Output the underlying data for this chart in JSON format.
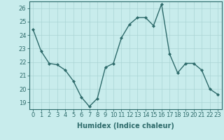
{
  "x": [
    0,
    1,
    2,
    3,
    4,
    5,
    6,
    7,
    8,
    9,
    10,
    11,
    12,
    13,
    14,
    15,
    16,
    17,
    18,
    19,
    20,
    21,
    22,
    23
  ],
  "y": [
    24.4,
    22.8,
    21.9,
    21.8,
    21.4,
    20.6,
    19.4,
    18.7,
    19.3,
    21.6,
    21.9,
    23.8,
    24.8,
    25.3,
    25.3,
    24.7,
    26.3,
    22.6,
    21.2,
    21.9,
    21.9,
    21.4,
    20.0,
    19.6
  ],
  "line_color": "#2e6b6b",
  "marker": "D",
  "marker_size": 2,
  "background_color": "#c8ecec",
  "grid_color": "#aad4d4",
  "xlabel": "Humidex (Indice chaleur)",
  "xlim": [
    -0.5,
    23.5
  ],
  "ylim": [
    18.5,
    26.5
  ],
  "yticks": [
    19,
    20,
    21,
    22,
    23,
    24,
    25,
    26
  ],
  "xticks": [
    0,
    1,
    2,
    3,
    4,
    5,
    6,
    7,
    8,
    9,
    10,
    11,
    12,
    13,
    14,
    15,
    16,
    17,
    18,
    19,
    20,
    21,
    22,
    23
  ],
  "tick_color": "#2e6b6b",
  "label_fontsize": 7,
  "tick_fontsize": 6,
  "spine_color": "#2e6b6b",
  "linewidth": 1.0
}
